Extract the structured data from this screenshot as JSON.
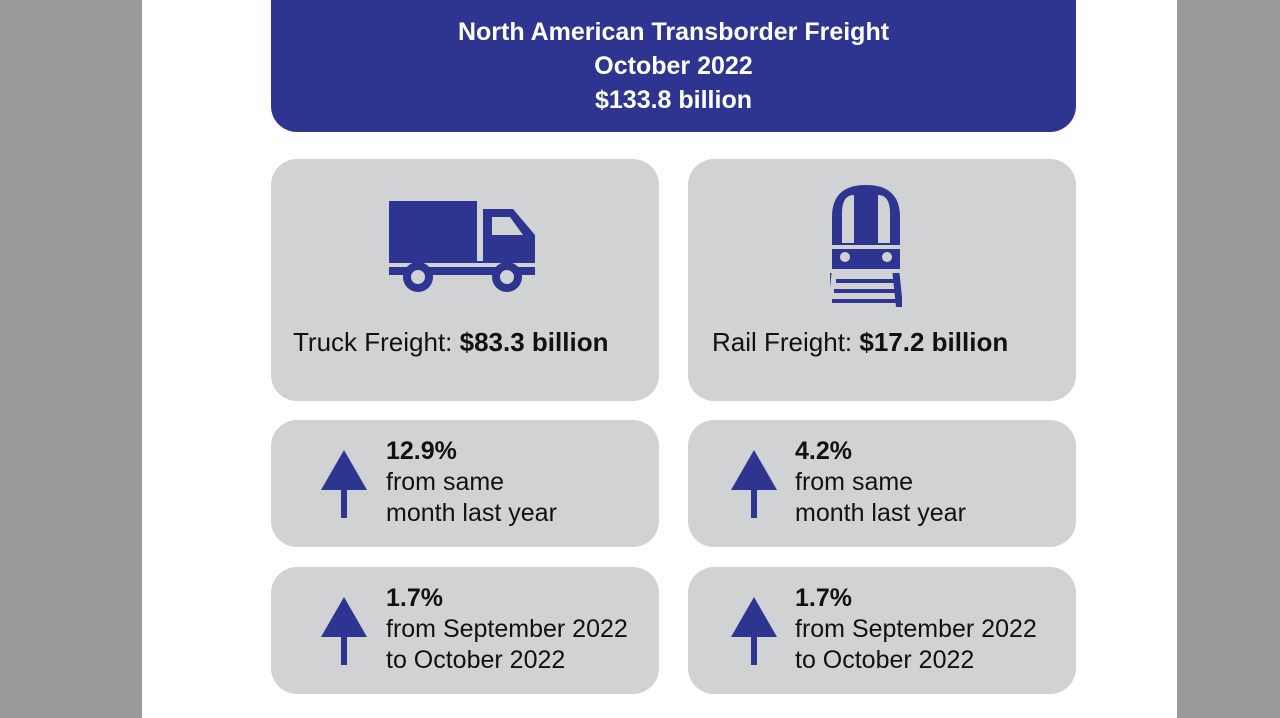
{
  "header": {
    "title": "North American Transborder Freight",
    "period": "October 2022",
    "total": "$133.8 billion"
  },
  "truck": {
    "icon": "truck-icon",
    "label": "Truck Freight:",
    "value": "$83.3 billion",
    "yoy": {
      "percent": "12.9%",
      "line1": "from same",
      "line2": "month last year",
      "direction": "up"
    },
    "mom": {
      "percent": "1.7%",
      "line1": "from September 2022",
      "line2": "to October 2022",
      "direction": "up"
    }
  },
  "rail": {
    "icon": "train-icon",
    "label": "Rail Freight:",
    "value": "$17.2 billion",
    "yoy": {
      "percent": "4.2%",
      "line1": "from same",
      "line2": "month last year",
      "direction": "up"
    },
    "mom": {
      "percent": "1.7%",
      "line1": "from September 2022",
      "line2": "to October 2022",
      "direction": "up"
    }
  },
  "colors": {
    "accent": "#2e3590",
    "card": "#d1d2d4",
    "background": "#9a9a9a"
  }
}
